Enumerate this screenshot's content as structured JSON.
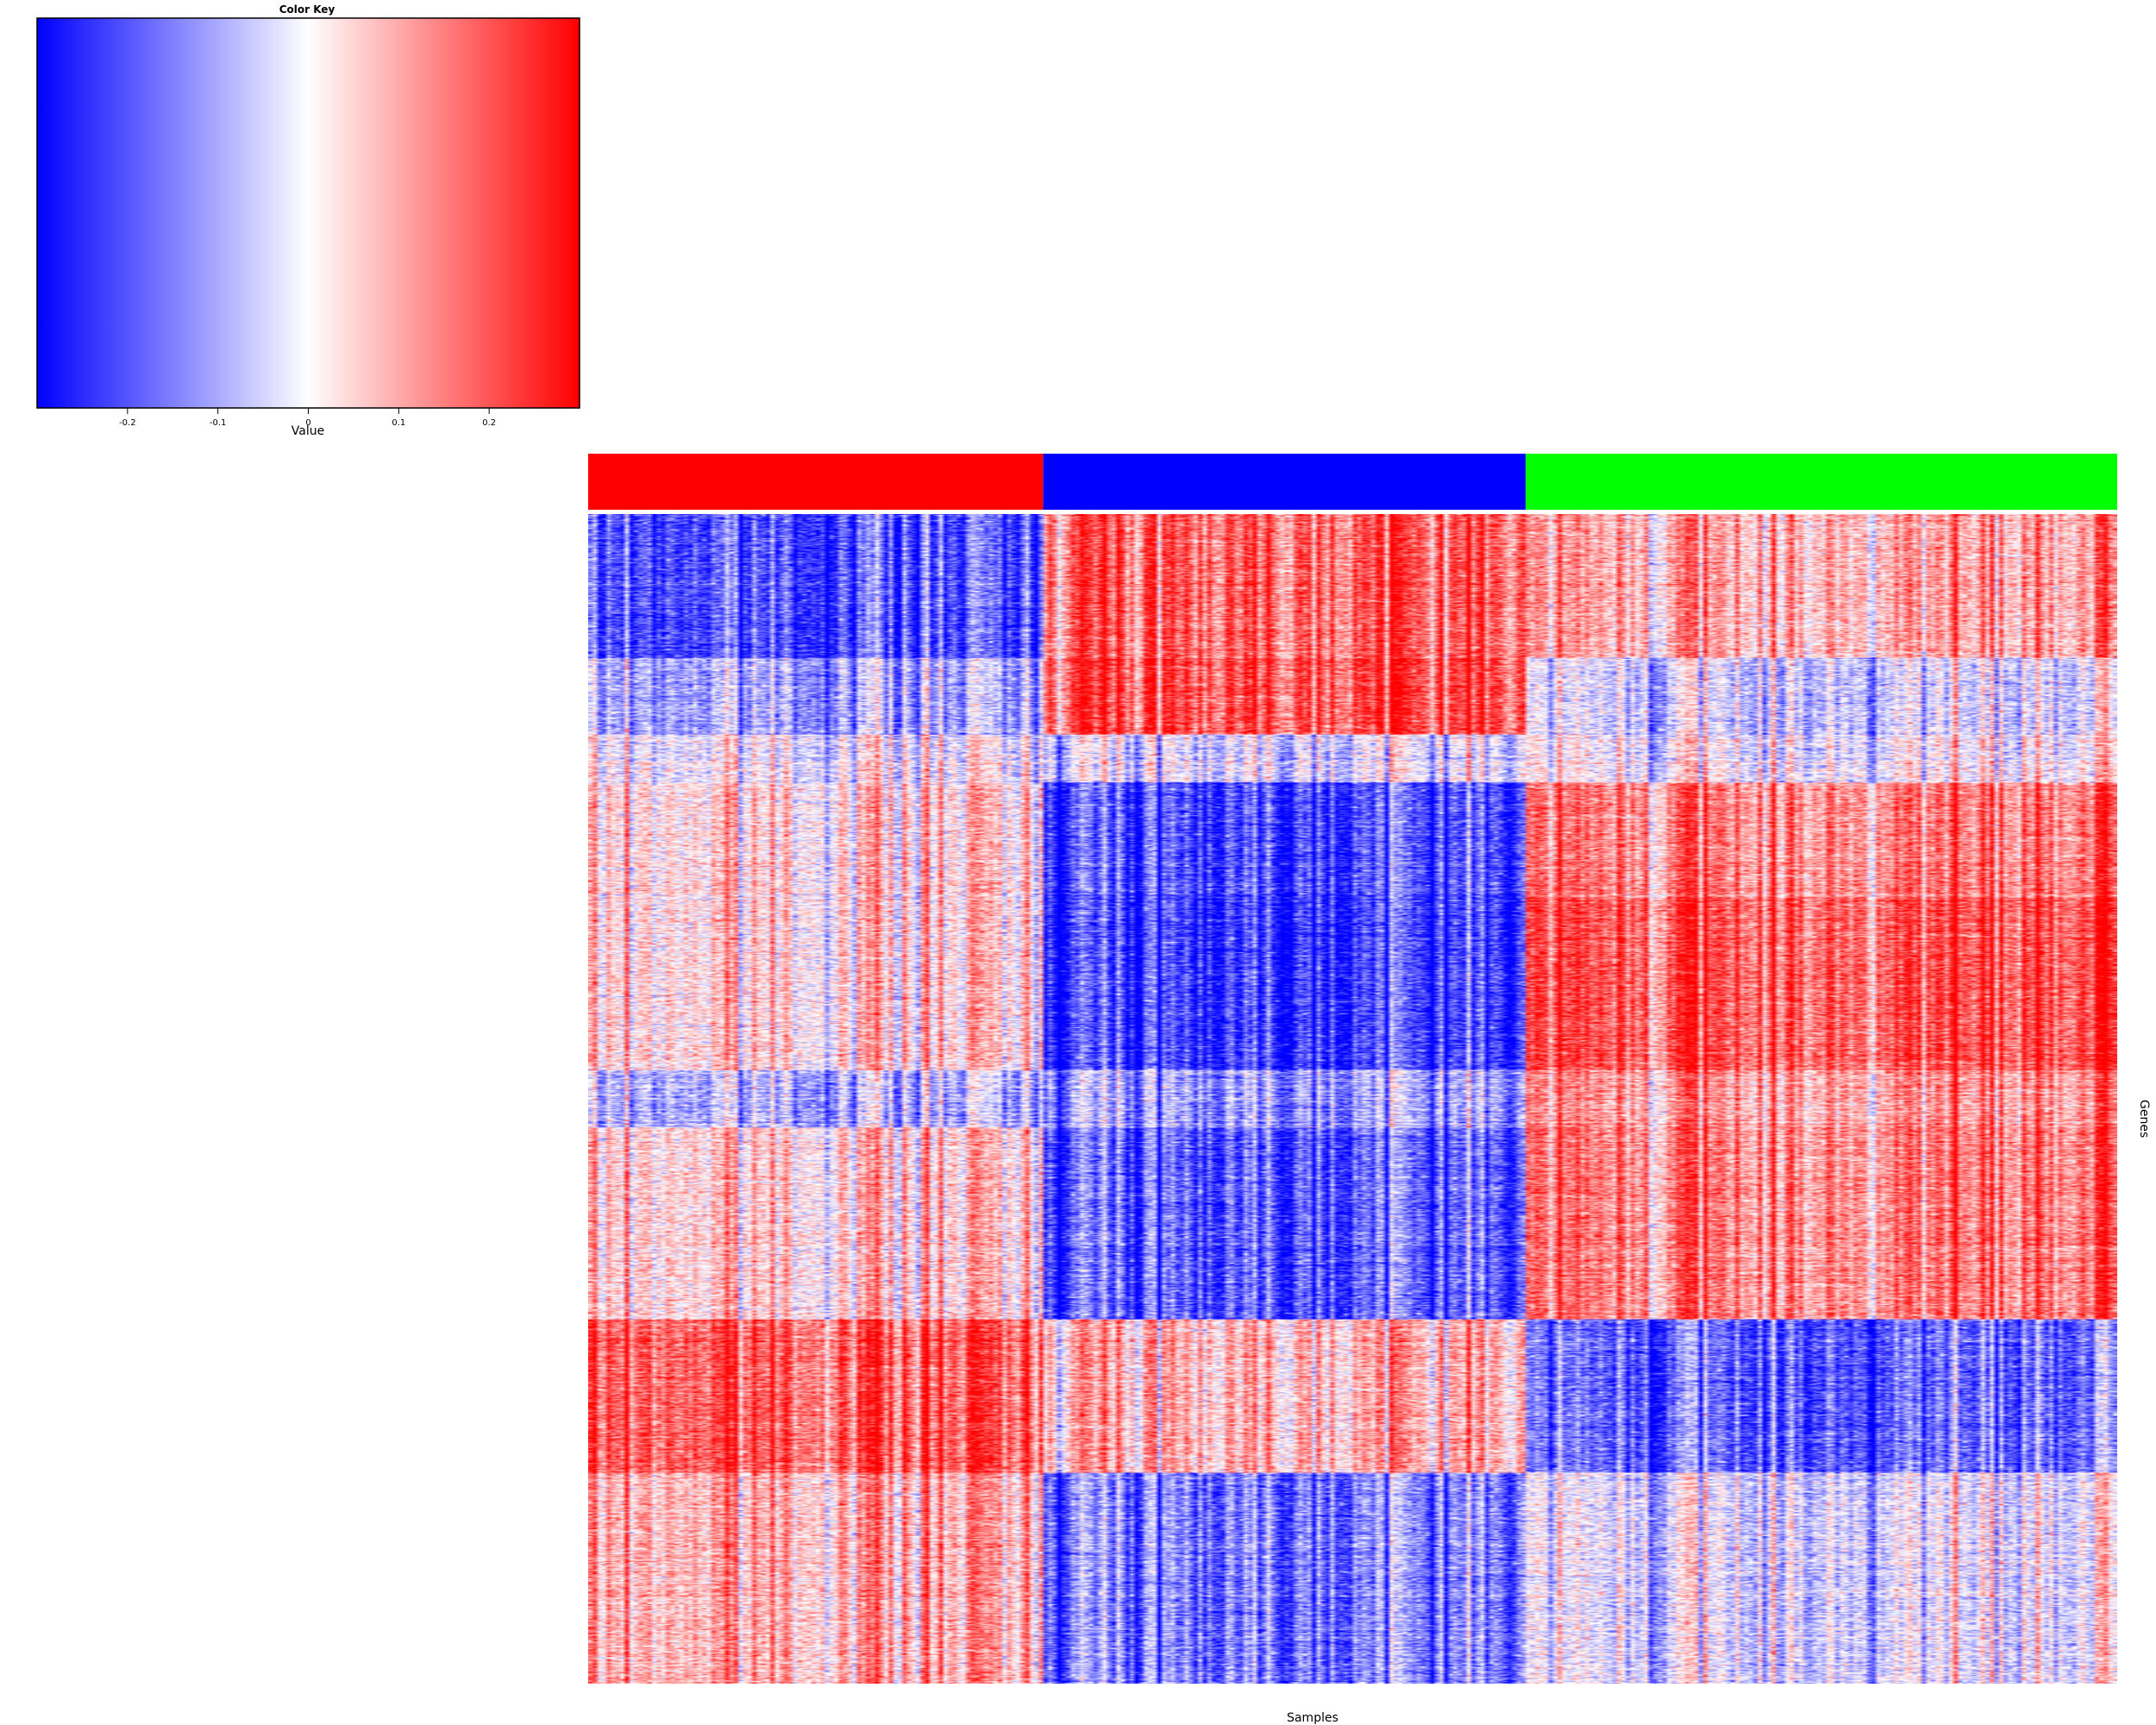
{
  "chart_data": {
    "type": "heatmap",
    "xlabel": "Samples",
    "ylabel": "Genes",
    "color_key": {
      "title": "Color Key",
      "label": "Value",
      "ticks": [
        -0.2,
        -0.1,
        0,
        0.1,
        0.2
      ],
      "range": [
        -0.3,
        0.3
      ],
      "colors": [
        "#0000ff",
        "#ffffff",
        "#ff0000"
      ]
    },
    "sample_groups": [
      {
        "color": "#ff0000",
        "samples": 100
      },
      {
        "color": "#0000ff",
        "samples": 106
      },
      {
        "color": "#00ff00",
        "samples": 130
      }
    ],
    "gene_blocks": [
      {
        "genes": 150,
        "mean_by_group": [
          -0.2,
          0.2,
          0.1
        ]
      },
      {
        "genes": 80,
        "mean_by_group": [
          -0.1,
          0.22,
          -0.05
        ]
      },
      {
        "genes": 50,
        "mean_by_group": [
          0.0,
          -0.02,
          0.0
        ]
      },
      {
        "genes": 120,
        "mean_by_group": [
          0.05,
          -0.2,
          0.15
        ]
      },
      {
        "genes": 180,
        "mean_by_group": [
          0.05,
          -0.22,
          0.2
        ]
      },
      {
        "genes": 60,
        "mean_by_group": [
          -0.08,
          -0.1,
          0.12
        ]
      },
      {
        "genes": 200,
        "mean_by_group": [
          0.06,
          -0.18,
          0.15
        ]
      },
      {
        "genes": 160,
        "mean_by_group": [
          0.2,
          0.1,
          -0.18
        ]
      },
      {
        "genes": 220,
        "mean_by_group": [
          0.1,
          -0.14,
          -0.03
        ]
      }
    ]
  }
}
